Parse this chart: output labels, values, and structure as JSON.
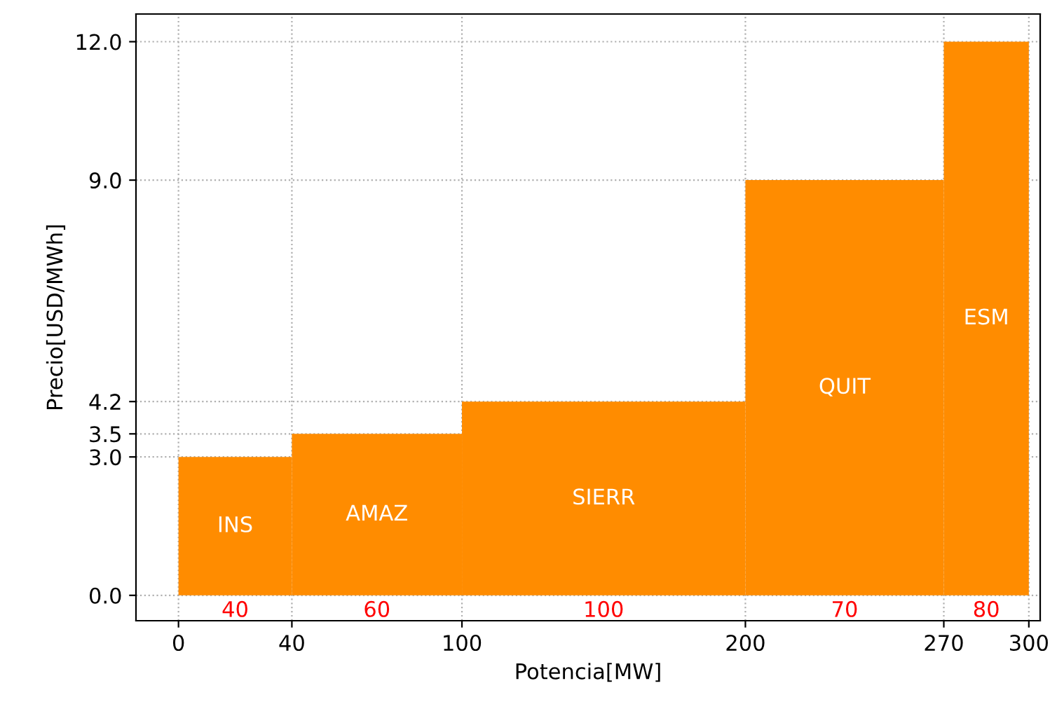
{
  "chart_data": {
    "type": "histogram",
    "xlabel": "Potencia[MW]",
    "ylabel": "Precio[USD/MWh]",
    "bins": [
      0,
      40,
      100,
      200,
      270,
      300
    ],
    "values": [
      3.0,
      3.5,
      4.2,
      9.0,
      12.0
    ],
    "color": "#ff8c00",
    "xlim": [
      -15,
      304
    ],
    "ylim": [
      -0.55,
      12.6
    ],
    "xticks": [
      0,
      40,
      100,
      200,
      270,
      300
    ],
    "yticks": [
      {
        "value": 0,
        "label": "0.0"
      },
      {
        "value": 3.0,
        "label": "3.0"
      },
      {
        "value": 3.5,
        "label": "3.5"
      },
      {
        "value": 4.2,
        "label": "4.2"
      },
      {
        "value": 9.0,
        "label": "9.0"
      },
      {
        "value": 12.0,
        "label": "12.0"
      }
    ],
    "grid": true,
    "annotations": [
      "INS",
      "AMAZ",
      "SIERR",
      "QUIT",
      "ESM",
      "40",
      "60",
      "100",
      "70",
      "80"
    ]
  }
}
